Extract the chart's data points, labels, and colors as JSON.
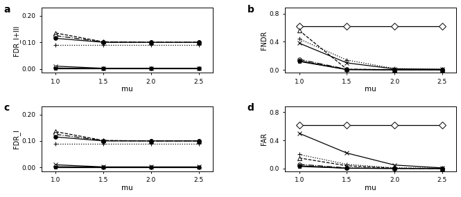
{
  "mu": [
    1.0,
    1.5,
    2.0,
    2.5
  ],
  "panel_a": {
    "ylabel": "FDR_I+III",
    "ylim": [
      -0.015,
      0.23
    ],
    "yticks": [
      0.0,
      0.1,
      0.2
    ],
    "yticklabels": [
      "0.00",
      "0.10",
      "0.20"
    ],
    "lines": [
      {
        "y": [
          0.135,
          0.102,
          0.1,
          0.1
        ],
        "marker": "^",
        "mfc": "white",
        "ls": "--",
        "lw": 0.9,
        "ms": 4
      },
      {
        "y": [
          0.125,
          0.101,
          0.1,
          0.1
        ],
        "marker": "o",
        "mfc": "white",
        "ls": "-.",
        "lw": 0.9,
        "ms": 4
      },
      {
        "y": [
          0.115,
          0.1,
          0.1,
          0.1
        ],
        "marker": "o",
        "mfc": "black",
        "ls": "-",
        "lw": 0.9,
        "ms": 4
      },
      {
        "y": [
          0.09,
          0.09,
          0.09,
          0.09
        ],
        "marker": "+",
        "mfc": "black",
        "ls": ":",
        "lw": 0.9,
        "ms": 5
      },
      {
        "y": [
          0.01,
          0.002,
          0.002,
          0.002
        ],
        "marker": "x",
        "mfc": "black",
        "ls": "-",
        "lw": 0.9,
        "ms": 4
      },
      {
        "y": [
          0.003,
          0.001,
          0.001,
          0.001
        ],
        "marker": "o",
        "mfc": "white",
        "ls": "-",
        "lw": 0.9,
        "ms": 4
      },
      {
        "y": [
          0.001,
          0.001,
          0.001,
          0.001
        ],
        "marker": "s",
        "mfc": "black",
        "ls": "-",
        "lw": 0.9,
        "ms": 3
      }
    ]
  },
  "panel_b": {
    "ylabel": "FNDR",
    "ylim": [
      -0.04,
      0.88
    ],
    "yticks": [
      0.0,
      0.4,
      0.8
    ],
    "yticklabels": [
      "0.0",
      "0.4",
      "0.8"
    ],
    "lines": [
      {
        "y": [
          0.62,
          0.62,
          0.62,
          0.62
        ],
        "marker": "D",
        "mfc": "white",
        "ls": "-",
        "lw": 0.9,
        "ms": 5
      },
      {
        "y": [
          0.56,
          0.01,
          0.005,
          0.005
        ],
        "marker": "^",
        "mfc": "white",
        "ls": "--",
        "lw": 0.9,
        "ms": 4
      },
      {
        "y": [
          0.44,
          0.14,
          0.02,
          0.01
        ],
        "marker": "+",
        "mfc": "black",
        "ls": ":",
        "lw": 0.9,
        "ms": 5
      },
      {
        "y": [
          0.38,
          0.1,
          0.015,
          0.01
        ],
        "marker": "x",
        "mfc": "black",
        "ls": "-",
        "lw": 0.9,
        "ms": 4
      },
      {
        "y": [
          0.15,
          0.01,
          0.003,
          0.003
        ],
        "marker": "o",
        "mfc": "white",
        "ls": "-.",
        "lw": 0.9,
        "ms": 4
      },
      {
        "y": [
          0.13,
          0.005,
          0.002,
          0.002
        ],
        "marker": "o",
        "mfc": "black",
        "ls": "-",
        "lw": 0.9,
        "ms": 4
      },
      {
        "y": [
          0.12,
          0.005,
          0.002,
          0.002
        ],
        "marker": "s",
        "mfc": "black",
        "ls": "-",
        "lw": 0.9,
        "ms": 3
      }
    ]
  },
  "panel_c": {
    "ylabel": "FDR_I",
    "ylim": [
      -0.015,
      0.23
    ],
    "yticks": [
      0.0,
      0.1,
      0.2
    ],
    "yticklabels": [
      "0.00",
      "0.10",
      "0.20"
    ],
    "lines": [
      {
        "y": [
          0.135,
          0.102,
          0.1,
          0.1
        ],
        "marker": "^",
        "mfc": "white",
        "ls": "--",
        "lw": 0.9,
        "ms": 4
      },
      {
        "y": [
          0.125,
          0.101,
          0.1,
          0.1
        ],
        "marker": "o",
        "mfc": "white",
        "ls": "-.",
        "lw": 0.9,
        "ms": 4
      },
      {
        "y": [
          0.115,
          0.1,
          0.1,
          0.1
        ],
        "marker": "o",
        "mfc": "black",
        "ls": "-",
        "lw": 0.9,
        "ms": 4
      },
      {
        "y": [
          0.09,
          0.09,
          0.09,
          0.09
        ],
        "marker": "+",
        "mfc": "black",
        "ls": ":",
        "lw": 0.9,
        "ms": 5
      },
      {
        "y": [
          0.01,
          0.002,
          0.002,
          0.002
        ],
        "marker": "x",
        "mfc": "black",
        "ls": "-",
        "lw": 0.9,
        "ms": 4
      },
      {
        "y": [
          0.003,
          0.001,
          0.001,
          0.001
        ],
        "marker": "o",
        "mfc": "white",
        "ls": "-",
        "lw": 0.9,
        "ms": 4
      },
      {
        "y": [
          0.001,
          0.001,
          0.001,
          0.001
        ],
        "marker": "s",
        "mfc": "black",
        "ls": "-",
        "lw": 0.9,
        "ms": 3
      }
    ]
  },
  "panel_d": {
    "ylabel": "FAR",
    "ylim": [
      -0.04,
      0.88
    ],
    "yticks": [
      0.0,
      0.4,
      0.8
    ],
    "yticklabels": [
      "0.0",
      "0.4",
      "0.8"
    ],
    "lines": [
      {
        "y": [
          0.62,
          0.62,
          0.62,
          0.62
        ],
        "marker": "D",
        "mfc": "white",
        "ls": "-",
        "lw": 0.9,
        "ms": 5
      },
      {
        "y": [
          0.5,
          0.22,
          0.05,
          0.01
        ],
        "marker": "x",
        "mfc": "black",
        "ls": "-",
        "lw": 0.9,
        "ms": 4
      },
      {
        "y": [
          0.2,
          0.06,
          0.01,
          0.005
        ],
        "marker": "+",
        "mfc": "black",
        "ls": ":",
        "lw": 0.9,
        "ms": 5
      },
      {
        "y": [
          0.15,
          0.04,
          0.005,
          0.003
        ],
        "marker": "^",
        "mfc": "white",
        "ls": "--",
        "lw": 0.9,
        "ms": 4
      },
      {
        "y": [
          0.06,
          0.01,
          0.002,
          0.001
        ],
        "marker": "o",
        "mfc": "white",
        "ls": "-.",
        "lw": 0.9,
        "ms": 4
      },
      {
        "y": [
          0.04,
          0.005,
          0.002,
          0.001
        ],
        "marker": "o",
        "mfc": "black",
        "ls": "-",
        "lw": 0.9,
        "ms": 4
      },
      {
        "y": [
          0.03,
          0.005,
          0.002,
          0.001
        ],
        "marker": "s",
        "mfc": "black",
        "ls": "-",
        "lw": 0.9,
        "ms": 3
      }
    ]
  },
  "xlabel": "mu",
  "xticks": [
    1.0,
    1.5,
    2.0,
    2.5
  ],
  "xticklabels": [
    "1.0",
    "1.5",
    "2.0",
    "2.5"
  ],
  "panel_labels": [
    "a",
    "b",
    "c",
    "d"
  ]
}
